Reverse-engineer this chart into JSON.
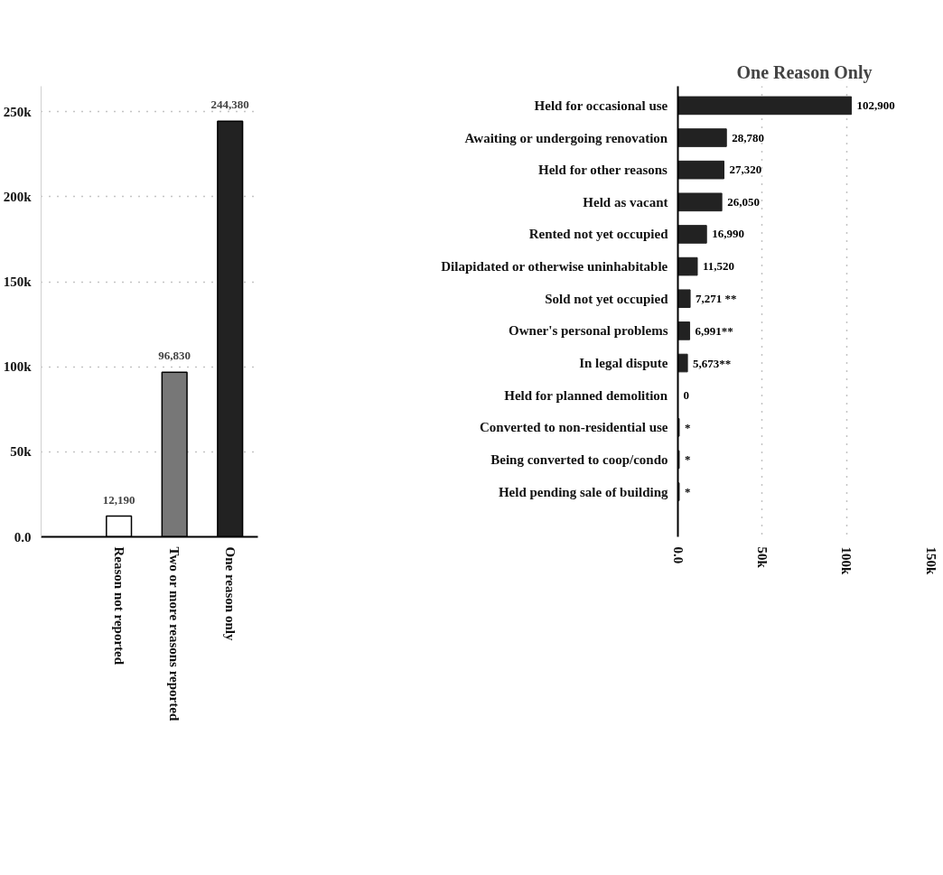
{
  "chart_data": [
    {
      "type": "bar",
      "categories": [
        "Reason not reported",
        "Two or more reasons reported",
        "One reason only"
      ],
      "values": [
        12190,
        96830,
        244380
      ],
      "colors": [
        "#ffffff",
        "#777777",
        "#222222"
      ],
      "value_labels": [
        "12,190",
        "96,830",
        "244,380"
      ],
      "ylim": [
        0,
        265000
      ],
      "yticks": [
        {
          "value": 0,
          "label": "0.0"
        },
        {
          "value": 50000,
          "label": "50k"
        },
        {
          "value": 100000,
          "label": "100k"
        },
        {
          "value": 150000,
          "label": "150k"
        },
        {
          "value": 200000,
          "label": "200k"
        },
        {
          "value": 250000,
          "label": "250k"
        }
      ],
      "grid": "y"
    },
    {
      "type": "bar",
      "orientation": "horizontal",
      "title": "One Reason Only",
      "categories": [
        "Held for occasional use",
        "Awaiting or undergoing renovation",
        "Held for other reasons",
        "Held as vacant",
        "Rented not yet occupied",
        "Dilapidated or otherwise uninhabitable",
        "Sold not yet occupied",
        "Owner's personal problems",
        "In legal dispute",
        "Held for planned demolition",
        "Converted to non-residential use",
        "Being converted to coop/condo",
        "Held pending sale of building"
      ],
      "values": [
        102900,
        28780,
        27320,
        26050,
        16990,
        11520,
        7271,
        6991,
        5673,
        0,
        800,
        800,
        800
      ],
      "value_labels": [
        "102,900",
        "28,780",
        "27,320",
        "26,050",
        "16,990",
        "11,520",
        "7,271 **",
        "6,991**",
        "5,673**",
        "0",
        "*",
        "*",
        "*"
      ],
      "color": "#222222",
      "xlim": [
        0,
        150000
      ],
      "xticks": [
        {
          "value": 0,
          "label": "0.0"
        },
        {
          "value": 50000,
          "label": "50k"
        },
        {
          "value": 100000,
          "label": "100k"
        },
        {
          "value": 150000,
          "label": "150k"
        }
      ],
      "grid": "x"
    }
  ]
}
